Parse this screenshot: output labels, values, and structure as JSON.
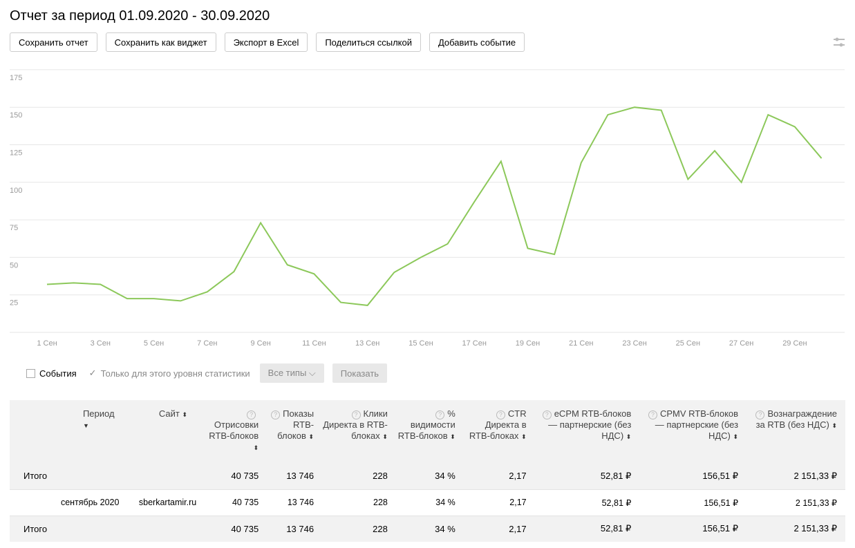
{
  "title": "Отчет за период 01.09.2020 - 30.09.2020",
  "toolbar": [
    "Сохранить отчет",
    "Сохранить как виджет",
    "Экспорт в Excel",
    "Поделиться ссылкой",
    "Добавить событие"
  ],
  "filters": {
    "events": "События",
    "only_level": "Только для этого уровня статистики",
    "types": "Все типы",
    "show": "Показать"
  },
  "colors": {
    "line": "#8cc85a",
    "grid": "#e6e6e6"
  },
  "chart_data": {
    "type": "line",
    "x": [
      "1 Сен",
      "2 Сен",
      "3 Сен",
      "4 Сен",
      "5 Сен",
      "6 Сен",
      "7 Сен",
      "8 Сен",
      "9 Сен",
      "10 Сен",
      "11 Сен",
      "12 Сен",
      "13 Сен",
      "14 Сен",
      "15 Сен",
      "16 Сен",
      "17 Сен",
      "18 Сен",
      "19 Сен",
      "20 Сен",
      "21 Сен",
      "22 Сен",
      "23 Сен",
      "24 Сен",
      "25 Сен",
      "26 Сен",
      "27 Сен",
      "28 Сен",
      "29 Сен",
      "30 Сен"
    ],
    "values": [
      32,
      33,
      32,
      22.5,
      22.5,
      21,
      27,
      40.5,
      73,
      45,
      39,
      20,
      18,
      40,
      50,
      59,
      87,
      114,
      56,
      52,
      113,
      145,
      150,
      148,
      102,
      121,
      100,
      145,
      137,
      116
    ],
    "yticks": [
      25,
      50,
      75,
      100,
      125,
      150,
      175
    ],
    "xtick_labels": [
      "1 Сен",
      "3 Сен",
      "5 Сен",
      "7 Сен",
      "9 Сен",
      "11 Сен",
      "13 Сен",
      "15 Сен",
      "17 Сен",
      "19 Сен",
      "21 Сен",
      "23 Сен",
      "25 Сен",
      "27 Сен",
      "29 Сен"
    ],
    "ylim": [
      0,
      175
    ],
    "grid": true
  },
  "table": {
    "headers": [
      {
        "label": "",
        "sort": ""
      },
      {
        "label": "Период",
        "sort": "▼"
      },
      {
        "label": "Сайт",
        "sort": "⬍"
      },
      {
        "label": "Отрисовки RTB-блоков",
        "sort": "⬍",
        "help": "?"
      },
      {
        "label": "Показы RTB-блоков",
        "sort": "⬍",
        "help": "?"
      },
      {
        "label": "Клики Директа в RTB-блоках",
        "sort": "⬍",
        "help": "?"
      },
      {
        "label": "% видимости RTB-блоков",
        "sort": "⬍",
        "help": "?"
      },
      {
        "label": "CTR Директа в RTB-блоках",
        "sort": "⬍",
        "help": "?"
      },
      {
        "label": "eCPM RTB-блоков — партнерские (без НДС)",
        "sort": "⬍",
        "help": "?"
      },
      {
        "label": "CPMV RTB-блоков — партнерские (без НДС)",
        "sort": "⬍",
        "help": "?"
      },
      {
        "label": "Вознаграждение за RTB (без НДС)",
        "sort": "⬍",
        "help": "?"
      }
    ],
    "rows": [
      {
        "type": "total",
        "cells": [
          "Итого",
          "",
          "",
          "40 735",
          "13 746",
          "228",
          "34 %",
          "2,17",
          "52,81 ₽",
          "156,51 ₽",
          "2 151,33 ₽"
        ]
      },
      {
        "type": "row",
        "cells": [
          "",
          "сентябрь 2020",
          "sberkartamir.ru",
          "40 735",
          "13 746",
          "228",
          "34 %",
          "2,17",
          "52,81 ₽",
          "156,51 ₽",
          "2 151,33 ₽"
        ]
      },
      {
        "type": "total",
        "cells": [
          "Итого",
          "",
          "",
          "40 735",
          "13 746",
          "228",
          "34 %",
          "2,17",
          "52,81 ₽",
          "156,51 ₽",
          "2 151,33 ₽"
        ]
      }
    ]
  }
}
